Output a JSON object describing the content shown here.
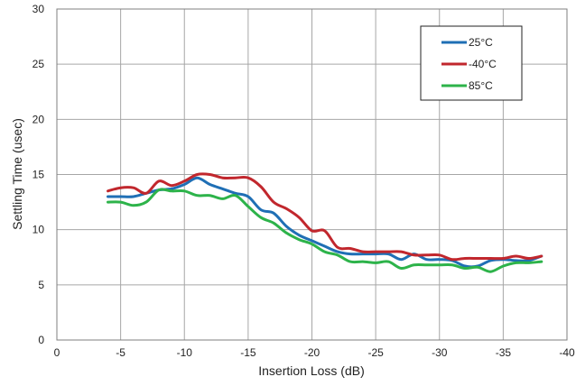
{
  "chart_data": {
    "type": "line",
    "title": "",
    "xlabel": "Insertion Loss (dB)",
    "ylabel": "Settling Time (usec)",
    "xlim": [
      0,
      -40
    ],
    "ylim": [
      0,
      30
    ],
    "x_ticks": [
      0,
      -5,
      -10,
      -15,
      -20,
      -25,
      -30,
      -35,
      -40
    ],
    "y_ticks": [
      0,
      5,
      10,
      15,
      20,
      25,
      30
    ],
    "x_tick_labels": [
      "0",
      "-5",
      "-10",
      "-15",
      "-20",
      "-25",
      "-30",
      "-35",
      "-40"
    ],
    "y_tick_labels": [
      "0",
      "5",
      "10",
      "15",
      "20",
      "25",
      "30"
    ],
    "grid": true,
    "legend_position": "top-right",
    "x": [
      -4,
      -5,
      -6,
      -7,
      -8,
      -9,
      -10,
      -11,
      -12,
      -13,
      -14,
      -15,
      -16,
      -17,
      -18,
      -19,
      -20,
      -21,
      -22,
      -23,
      -24,
      -25,
      -26,
      -27,
      -28,
      -29,
      -30,
      -31,
      -32,
      -33,
      -34,
      -35,
      -36,
      -37,
      -38
    ],
    "series": [
      {
        "name": "25°C",
        "color": "#1f6fb5",
        "values": [
          13.0,
          13.0,
          13.0,
          13.3,
          13.6,
          13.7,
          14.1,
          14.7,
          14.1,
          13.7,
          13.3,
          13.0,
          11.8,
          11.5,
          10.3,
          9.5,
          9.0,
          8.5,
          8.0,
          7.8,
          7.8,
          7.8,
          7.8,
          7.3,
          7.8,
          7.3,
          7.3,
          7.2,
          6.7,
          6.7,
          7.2,
          7.3,
          7.2,
          7.2,
          7.6
        ]
      },
      {
        "name": "-40°C",
        "color": "#c1272d",
        "values": [
          13.5,
          13.8,
          13.8,
          13.3,
          14.4,
          14.0,
          14.4,
          15.0,
          15.0,
          14.7,
          14.7,
          14.7,
          13.9,
          12.5,
          11.9,
          11.1,
          9.9,
          9.9,
          8.4,
          8.3,
          8.0,
          8.0,
          8.0,
          8.0,
          7.7,
          7.7,
          7.7,
          7.3,
          7.4,
          7.4,
          7.4,
          7.4,
          7.6,
          7.4,
          7.6
        ]
      },
      {
        "name": "85°C",
        "color": "#2db34a",
        "values": [
          12.5,
          12.5,
          12.2,
          12.5,
          13.6,
          13.5,
          13.5,
          13.1,
          13.1,
          12.8,
          13.1,
          12.1,
          11.1,
          10.6,
          9.7,
          9.1,
          8.7,
          8.0,
          7.7,
          7.1,
          7.1,
          7.0,
          7.1,
          6.5,
          6.8,
          6.8,
          6.8,
          6.8,
          6.5,
          6.6,
          6.2,
          6.7,
          7.0,
          7.0,
          7.1
        ]
      }
    ]
  }
}
